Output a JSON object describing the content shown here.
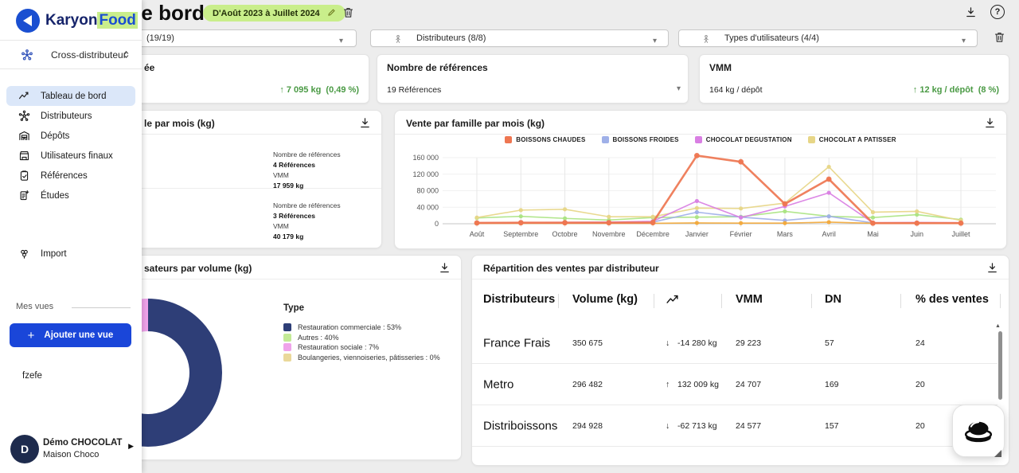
{
  "colors": {
    "accent_blue": "#1a46d9",
    "highlight_green": "#c9ee8b",
    "positive": "#4a9a44",
    "negative": "#c0544a",
    "active_nav_bg": "#dbe7f9"
  },
  "sidebar": {
    "brand_karyon": "Karyon",
    "brand_food": "Food",
    "workspace_label": "Cross-distributeur",
    "nav": [
      {
        "icon": "trend",
        "label": "Tableau de bord",
        "active": true
      },
      {
        "icon": "network",
        "label": "Distributeurs",
        "active": false
      },
      {
        "icon": "warehouse",
        "label": "Dépôts",
        "active": false
      },
      {
        "icon": "store",
        "label": "Utilisateurs finaux",
        "active": false
      },
      {
        "icon": "clipboard",
        "label": "Références",
        "active": false
      },
      {
        "icon": "doc",
        "label": "Études",
        "active": false
      }
    ],
    "import_label": "Import",
    "views_label": "Mes vues",
    "add_view_plus": "+",
    "add_view_label": "Ajouter une vue",
    "view_item": "fzefe",
    "user": {
      "initial": "D",
      "name": "Démo CHOCOLAT",
      "org": "Maison Choco"
    }
  },
  "header": {
    "title": "Tableau de bord",
    "period": "D'Août 2023 à Juillet 2024"
  },
  "filters": {
    "f1": "(19/19)",
    "f2": "Distributeurs (8/8)",
    "f3": "Types d'utilisateurs (4/4)"
  },
  "kpis": {
    "card1": {
      "title_fragment": "ée",
      "delta": "↑ 7 095 kg",
      "delta_pct": "(0,49 %)"
    },
    "card2": {
      "title": "Nombre de références",
      "value": "19 Références"
    },
    "card3": {
      "title": "VMM",
      "value": "164 kg / dépôt",
      "delta": "↑ 12 kg / dépôt",
      "delta_pct": "(8 %)"
    }
  },
  "family_card": {
    "title_fragment": "le par mois (kg)",
    "rows": [
      {
        "big_fragment": "g",
        "big_color": "#5b9e3d",
        "ref_label": "Nombre de références",
        "ref_value": "4 Références",
        "vmm_label": "VMM",
        "vmm_value": "17 959 kg"
      },
      {
        "big_fragment": "g",
        "big_color": "#cf5f38",
        "ref_label": "Nombre de références",
        "ref_value": "3 Références",
        "vmm_label": "VMM",
        "vmm_value": "40 179 kg"
      }
    ]
  },
  "chart_card": {
    "title": "Vente par famille par mois (kg)"
  },
  "donut_card": {
    "title_fragment": "sateurs par volume (kg)"
  },
  "table_card": {
    "title": "Répartition des ventes par distributeur",
    "columns": [
      {
        "label": "Distributeurs",
        "icon": null
      },
      {
        "label": "Volume (kg)",
        "icon": null
      },
      {
        "label": "",
        "icon": "trendcol"
      },
      {
        "label": "VMM",
        "icon": null
      },
      {
        "label": "DN",
        "icon": null
      },
      {
        "label": "% des ventes",
        "icon": null
      }
    ],
    "rows": [
      {
        "name": "France Frais",
        "volume": "350 675",
        "trend_dir": "down",
        "trend": "-14 280 kg",
        "vmm": "29 223",
        "dn": "57",
        "pct": "24"
      },
      {
        "name": "Metro",
        "volume": "296 482",
        "trend_dir": "up",
        "trend": "132 009 kg",
        "vmm": "24 707",
        "dn": "169",
        "pct": "20"
      },
      {
        "name": "Distriboissons",
        "volume": "294 928",
        "trend_dir": "down",
        "trend": "-62 713 kg",
        "vmm": "24 577",
        "dn": "157",
        "pct": "20"
      }
    ]
  },
  "chart_data": [
    {
      "type": "line",
      "title": "Vente par famille par mois (kg)",
      "categories": [
        "Août",
        "Septembre",
        "Octobre",
        "Novembre",
        "Décembre",
        "Janvier",
        "Février",
        "Mars",
        "Avril",
        "Mai",
        "Juin",
        "Juillet"
      ],
      "ylim": [
        0,
        170000
      ],
      "y_ticks": [
        0,
        40000,
        80000,
        120000,
        160000
      ],
      "y_tick_labels": [
        "0",
        "40 000",
        "80 000",
        "120 000",
        "160 000"
      ],
      "grid": true,
      "legend_position": "top",
      "series": [
        {
          "name": "BOISSONS CHAUDES",
          "color": "#ee7651",
          "in_legend": true,
          "values": [
            2000,
            2500,
            2500,
            2500,
            3000,
            165000,
            150000,
            48000,
            108000,
            1500,
            1500,
            1500
          ]
        },
        {
          "name": "BOISSONS FROIDES",
          "color": "#9fb0e8",
          "in_legend": true,
          "values": [
            2000,
            3000,
            3000,
            3500,
            4000,
            28000,
            16000,
            8000,
            18000,
            2000,
            2500,
            2000
          ]
        },
        {
          "name": "CHOCOLAT DEGUSTATION",
          "color": "#d97fe3",
          "in_legend": true,
          "values": [
            2500,
            3000,
            3500,
            4000,
            6000,
            55000,
            15000,
            42000,
            75000,
            2500,
            3000,
            2500
          ]
        },
        {
          "name": "CHOCOLAT A PATISSER",
          "color": "#e7d687",
          "in_legend": true,
          "values": [
            15000,
            33000,
            35000,
            17000,
            17000,
            38000,
            37000,
            50000,
            138000,
            28000,
            30000,
            8000
          ]
        },
        {
          "name": "",
          "color": "#abe483",
          "in_legend": false,
          "values": [
            14000,
            18000,
            13000,
            9000,
            15000,
            16000,
            17000,
            30000,
            18000,
            15000,
            22000,
            10000
          ]
        },
        {
          "name": "",
          "color": "#f2a93b",
          "in_legend": false,
          "values": [
            1000,
            1000,
            1000,
            1000,
            1000,
            2000,
            1500,
            1500,
            4000,
            1000,
            1000,
            1000
          ]
        }
      ]
    },
    {
      "type": "donut",
      "legend_title": "Type",
      "labels": [
        "Restauration commerciale",
        "Autres",
        "Restauration sociale",
        "Boulangeries, viennoiseries, pâtisseries"
      ],
      "values": [
        53,
        40,
        7,
        0
      ],
      "colors": [
        "#2e3e77",
        "#c3ea96",
        "#efa3ea",
        "#ead89a"
      ],
      "label_suffix": "%"
    }
  ]
}
